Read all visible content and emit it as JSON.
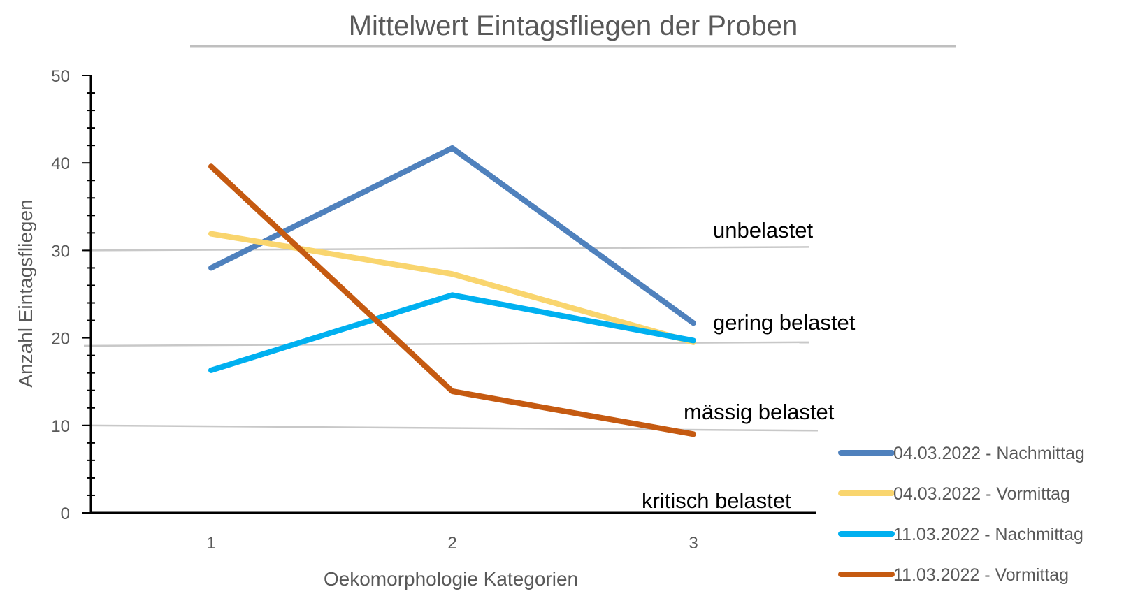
{
  "chart_data": {
    "type": "line",
    "title": "Mittelwert Eintagsfliegen der Proben",
    "xlabel": "Oekomorphologie Kategorien",
    "ylabel": "Anzahl Eintagsfliegen",
    "categories": [
      "1",
      "2",
      "3"
    ],
    "ylim": [
      0,
      50
    ],
    "yticks": [
      0,
      10,
      20,
      30,
      40,
      50
    ],
    "grid": false,
    "legend_position": "bottom-right",
    "series": [
      {
        "name": "04.03.2022 - Nachmittag",
        "color": "#4F81BD",
        "values": [
          28,
          41.7,
          21.7
        ]
      },
      {
        "name": "04.03.2022 - Vormittag",
        "color": "#F9D56E",
        "values": [
          31.9,
          27.3,
          19.5
        ]
      },
      {
        "name": "11.03.2022 - Nachmittag",
        "color": "#00B0F0",
        "values": [
          16.3,
          24.9,
          19.7
        ]
      },
      {
        "name": "11.03.2022 - Vormittag",
        "color": "#C55A11",
        "values": [
          39.6,
          13.9,
          9
        ]
      }
    ],
    "reference_lines": [
      {
        "label": "unbelastet",
        "y_start": 30,
        "y_end": 30.4
      },
      {
        "label": "gering belastet",
        "y_start": 19.1,
        "y_end": 19.5
      },
      {
        "label": "mässig belastet",
        "y_start": 10,
        "y_end": 9.4
      }
    ],
    "region_labels": [
      "unbelastet",
      "gering belastet",
      "mässig belastet",
      "kritisch belastet"
    ]
  }
}
